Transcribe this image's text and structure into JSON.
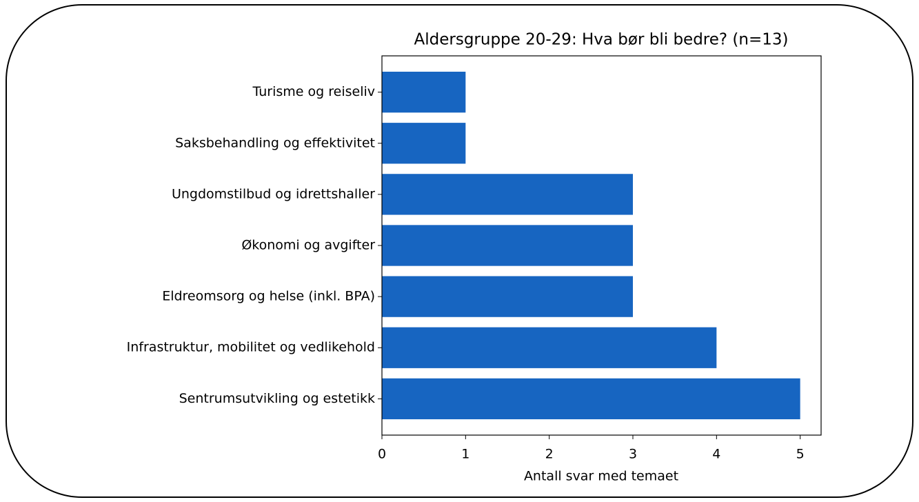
{
  "chart_data": {
    "type": "barh",
    "title": "Aldersgruppe 20-29: Hva bør bli bedre? (n=13)",
    "xlabel": "Antall svar med temaet",
    "categories": [
      "Turisme og reiseliv",
      "Saksbehandling og effektivitet",
      "Ungdomstilbud og idrettshaller",
      "Økonomi og avgifter",
      "Eldreomsorg og helse (inkl. BPA)",
      "Infrastruktur, mobilitet og vedlikehold",
      "Sentrumsutvikling og estetikk"
    ],
    "values": [
      1,
      1,
      3,
      3,
      3,
      4,
      5
    ],
    "color": "#1765c1",
    "xlim": [
      0,
      5.25
    ],
    "xticks": [
      0,
      1,
      2,
      3,
      4,
      5
    ]
  }
}
